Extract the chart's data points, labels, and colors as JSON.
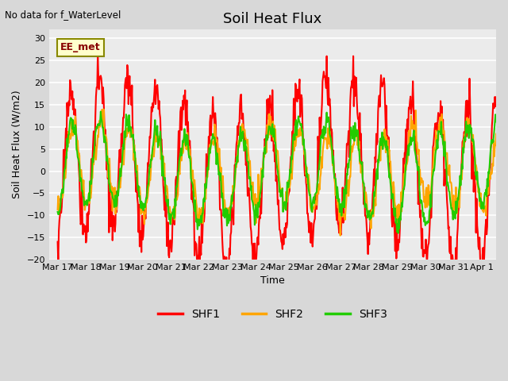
{
  "title": "Soil Heat Flux",
  "top_left_text": "No data for f_WaterLevel",
  "ylabel": "Soil Heat Flux (W/m2)",
  "xlabel": "Time",
  "annotation_box": "EE_met",
  "ylim": [
    -20,
    32
  ],
  "yticks": [
    -20,
    -15,
    -10,
    -5,
    0,
    5,
    10,
    15,
    20,
    25,
    30
  ],
  "x_labels": [
    "Mar 17",
    "Mar 18",
    "Mar 19",
    "Mar 20",
    "Mar 21",
    "Mar 22",
    "Mar 23",
    "Mar 24",
    "Mar 25",
    "Mar 26",
    "Mar 27",
    "Mar 28",
    "Mar 29",
    "Mar 30",
    "Mar 31",
    "Apr 1"
  ],
  "x_tick_positions": [
    0,
    1,
    2,
    3,
    4,
    5,
    6,
    7,
    8,
    9,
    10,
    11,
    12,
    13,
    14,
    15
  ],
  "series_SHF1_color": "#ff0000",
  "series_SHF2_color": "#ffa500",
  "series_SHF3_color": "#22cc00",
  "series_linewidth": 1.5,
  "bg_color": "#d8d8d8",
  "plot_bg_color": "#ebebeb",
  "grid_color": "#ffffff"
}
